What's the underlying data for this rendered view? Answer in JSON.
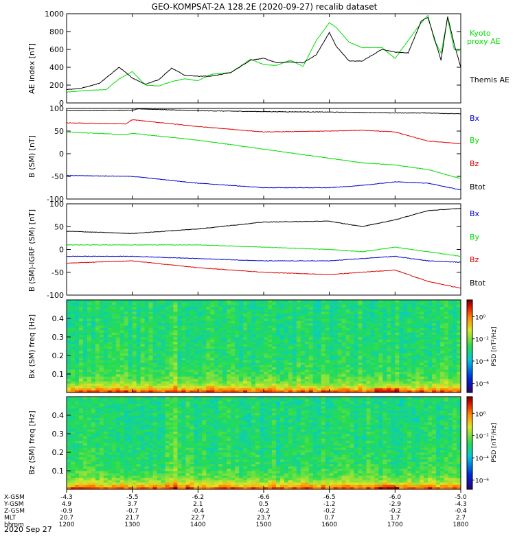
{
  "figure": {
    "title": "GEO-KOMPSAT-2A 128.2E (2020-09-27) recalib dataset"
  },
  "colors": {
    "black": "#000000",
    "green": "#00dd00",
    "red": "#dd0000",
    "blue": "#0000cc"
  },
  "chart_data": [
    {
      "id": "ae",
      "type": "line",
      "ylabel": "AE index [nT]",
      "ylim": [
        0,
        1000
      ],
      "yticks": [
        "0",
        "200",
        "400",
        "600",
        "800",
        "1000"
      ],
      "xlim": [
        12.0,
        18.0
      ],
      "series": [
        {
          "name": "Kyoto proxy AE",
          "color": "green",
          "x": [
            12.0,
            12.3,
            12.6,
            12.8,
            13.0,
            13.2,
            13.4,
            13.6,
            13.8,
            14.0,
            14.2,
            14.5,
            14.8,
            15.0,
            15.2,
            15.4,
            15.6,
            15.8,
            16.0,
            16.1,
            16.3,
            16.5,
            16.8,
            17.0,
            17.2,
            17.4,
            17.5,
            17.6,
            17.7,
            17.8,
            17.9,
            18.0
          ],
          "y": [
            120,
            140,
            150,
            270,
            350,
            200,
            190,
            240,
            270,
            250,
            320,
            340,
            490,
            430,
            420,
            480,
            410,
            700,
            900,
            850,
            680,
            620,
            620,
            500,
            700,
            900,
            980,
            700,
            560,
            950,
            600,
            580
          ]
        },
        {
          "name": "Themis AE",
          "color": "black",
          "x": [
            12.0,
            12.2,
            12.5,
            12.8,
            13.0,
            13.2,
            13.4,
            13.6,
            13.8,
            14.0,
            14.2,
            14.5,
            14.8,
            15.0,
            15.2,
            15.4,
            15.6,
            15.8,
            16.0,
            16.1,
            16.3,
            16.5,
            16.8,
            17.0,
            17.2,
            17.4,
            17.5,
            17.6,
            17.7,
            17.8,
            17.9,
            18.0
          ],
          "y": [
            150,
            160,
            220,
            400,
            280,
            210,
            260,
            390,
            310,
            300,
            300,
            340,
            480,
            500,
            450,
            460,
            450,
            540,
            790,
            640,
            470,
            470,
            600,
            570,
            560,
            920,
            960,
            720,
            480,
            970,
            660,
            400
          ]
        }
      ]
    },
    {
      "id": "bsm",
      "type": "line",
      "ylabel": "B (SM) [nT]",
      "ylim": [
        -100,
        100
      ],
      "yticks": [
        "-100",
        "-50",
        "0",
        "50",
        "100"
      ],
      "xlim": [
        12.0,
        18.0
      ],
      "series": [
        {
          "name": "Bx",
          "color": "black",
          "x": [
            12.0,
            13.0,
            13.1,
            14.0,
            15.0,
            16.0,
            17.0,
            17.5,
            18.0
          ],
          "y": [
            95,
            96,
            99,
            95,
            93,
            92,
            90,
            90,
            88
          ]
        },
        {
          "name": "By",
          "color": "green",
          "x": [
            12.0,
            12.9,
            13.0,
            14.0,
            15.0,
            16.0,
            16.5,
            17.0,
            17.5,
            18.0
          ],
          "y": [
            48,
            42,
            45,
            30,
            10,
            -10,
            -20,
            -25,
            -35,
            -55
          ]
        },
        {
          "name": "Bz",
          "color": "red",
          "x": [
            12.0,
            12.9,
            13.0,
            14.0,
            15.0,
            16.0,
            16.5,
            17.0,
            17.5,
            18.0
          ],
          "y": [
            68,
            66,
            75,
            60,
            48,
            50,
            52,
            48,
            28,
            22
          ]
        },
        {
          "name": "Btot",
          "color": "blue",
          "x": [
            12.0,
            13.0,
            14.0,
            15.0,
            16.0,
            16.5,
            17.0,
            17.5,
            18.0
          ],
          "y": [
            -48,
            -50,
            -65,
            -75,
            -75,
            -70,
            -62,
            -65,
            -80
          ]
        }
      ]
    },
    {
      "id": "bdelta",
      "type": "line",
      "ylabel": "B (SM)-IGRF (SM) [nT]",
      "ylim": [
        -100,
        100
      ],
      "yticks": [
        "-100",
        "-50",
        "0",
        "50",
        "100"
      ],
      "xlim": [
        12.0,
        18.0
      ],
      "series": [
        {
          "name": "Bx",
          "color": "black",
          "x": [
            12.0,
            13.0,
            14.0,
            15.0,
            16.0,
            16.5,
            17.0,
            17.5,
            18.0
          ],
          "y": [
            40,
            35,
            45,
            60,
            62,
            50,
            65,
            85,
            90
          ]
        },
        {
          "name": "By",
          "color": "green",
          "x": [
            12.0,
            13.0,
            14.0,
            15.0,
            16.0,
            16.5,
            17.0,
            17.5,
            18.0
          ],
          "y": [
            10,
            10,
            10,
            5,
            0,
            -5,
            5,
            -5,
            -15
          ]
        },
        {
          "name": "Bz",
          "color": "red",
          "x": [
            12.0,
            13.0,
            14.0,
            15.0,
            16.0,
            16.5,
            17.0,
            17.5,
            18.0
          ],
          "y": [
            -30,
            -25,
            -40,
            -50,
            -55,
            -50,
            -45,
            -70,
            -85
          ]
        },
        {
          "name": "Btot",
          "color": "blue",
          "x": [
            12.0,
            13.0,
            14.0,
            15.0,
            16.0,
            16.5,
            17.0,
            17.5,
            18.0
          ],
          "y": [
            -15,
            -15,
            -20,
            -25,
            -25,
            -20,
            -15,
            -25,
            -28
          ]
        }
      ]
    },
    {
      "id": "spec_bx",
      "type": "heatmap",
      "ylabel": "Bx (SM) freq [Hz]",
      "ylim": [
        0,
        0.5
      ],
      "yticks": [
        "0.1",
        "0.2",
        "0.3",
        "0.4"
      ],
      "xlim": [
        12.0,
        18.0
      ],
      "colorbar_label": "PSD [nT²/Hz]",
      "colorbar_ticks": [
        "10⁰",
        "10⁻²",
        "10⁻⁴",
        "10⁻⁶"
      ]
    },
    {
      "id": "spec_bz",
      "type": "heatmap",
      "ylabel": "Bz (SM) freq [Hz]",
      "ylim": [
        0,
        0.5
      ],
      "yticks": [
        "0.1",
        "0.2",
        "0.3",
        "0.4"
      ],
      "xlim": [
        12.0,
        18.0
      ],
      "colorbar_label": "PSD [nT²/Hz]",
      "colorbar_ticks": [
        "10⁰",
        "10⁻²",
        "10⁻⁴",
        "10⁻⁶"
      ]
    }
  ],
  "legends": {
    "ae": [
      "Kyoto",
      "proxy AE",
      "Themis AE"
    ],
    "b": [
      "Bx",
      "By",
      "Bz",
      "Btot"
    ]
  },
  "xaxis": {
    "rows": [
      {
        "label": "X-GSM",
        "values": [
          "-4.3",
          "-5.5",
          "-6.2",
          "-6.6",
          "-6.5",
          "-6.0",
          "-5.0"
        ]
      },
      {
        "label": "Y-GSM",
        "values": [
          "4.9",
          "3.7",
          "2.1",
          "0.5",
          "-1.2",
          "-2.9",
          "-4.3"
        ]
      },
      {
        "label": "Z-GSM",
        "values": [
          "-0.9",
          "-0.7",
          "-0.4",
          "-0.2",
          "-0.2",
          "-0.2",
          "-0.4"
        ]
      },
      {
        "label": "MLT",
        "values": [
          "20.7",
          "21.7",
          "22.7",
          "23.7",
          "0.7",
          "1.7",
          "2.7"
        ]
      },
      {
        "label": "hhmm",
        "values": [
          "1200",
          "1300",
          "1400",
          "1500",
          "1600",
          "1700",
          "1800"
        ]
      }
    ],
    "date": "2020 Sep 27"
  }
}
